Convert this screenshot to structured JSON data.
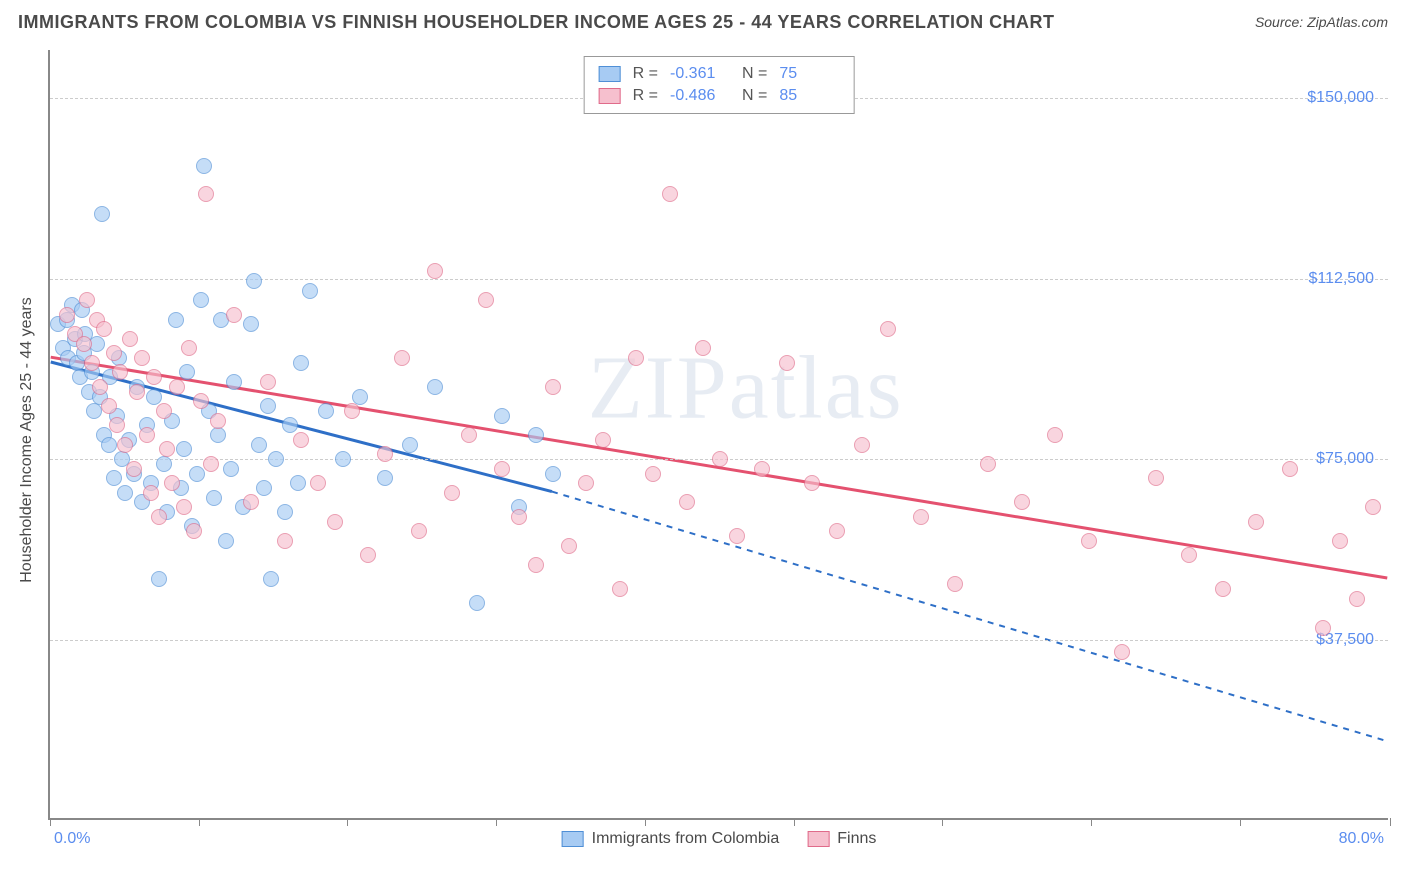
{
  "header": {
    "title": "IMMIGRANTS FROM COLOMBIA VS FINNISH HOUSEHOLDER INCOME AGES 25 - 44 YEARS CORRELATION CHART",
    "source": "Source: ZipAtlas.com"
  },
  "watermark": "ZIPatlas",
  "chart": {
    "type": "scatter-with-regression",
    "background_color": "#ffffff",
    "grid_color": "#cccccc",
    "axis_color": "#888888",
    "value_color": "#5b8def",
    "text_color": "#4a4a4a",
    "xaxis": {
      "min": 0.0,
      "max": 80.0,
      "label_left": "0.0%",
      "label_right": "80.0%",
      "tick_positions_pct": [
        0,
        11.1,
        22.2,
        33.3,
        44.4,
        55.5,
        66.6,
        77.7,
        88.8,
        100
      ]
    },
    "yaxis": {
      "title": "Householder Income Ages 25 - 44 years",
      "min": 0,
      "max": 160000,
      "ticks": [
        {
          "value": 37500,
          "label": "$37,500"
        },
        {
          "value": 75000,
          "label": "$75,000"
        },
        {
          "value": 112500,
          "label": "$112,500"
        },
        {
          "value": 150000,
          "label": "$150,000"
        }
      ]
    },
    "series": [
      {
        "id": "colombia",
        "label": "Immigrants from Colombia",
        "fill_color": "#a7cbf3",
        "stroke_color": "#4f8fd6",
        "line_color": "#2e6fc7",
        "r": "-0.361",
        "n": "75",
        "regression": {
          "x1": 0,
          "y1": 95000,
          "x2_solid": 30,
          "y2_solid": 68000,
          "x2_dash": 80,
          "y2_dash": 16000
        },
        "points": [
          [
            0.5,
            103000
          ],
          [
            0.8,
            98000
          ],
          [
            1.0,
            104000
          ],
          [
            1.1,
            96000
          ],
          [
            1.3,
            107000
          ],
          [
            1.5,
            100000
          ],
          [
            1.6,
            95000
          ],
          [
            1.8,
            92000
          ],
          [
            1.9,
            106000
          ],
          [
            2.0,
            97000
          ],
          [
            2.1,
            101000
          ],
          [
            2.3,
            89000
          ],
          [
            2.5,
            93000
          ],
          [
            2.6,
            85000
          ],
          [
            2.8,
            99000
          ],
          [
            3.0,
            88000
          ],
          [
            3.1,
            126000
          ],
          [
            3.2,
            80000
          ],
          [
            3.5,
            78000
          ],
          [
            3.6,
            92000
          ],
          [
            3.8,
            71000
          ],
          [
            4.0,
            84000
          ],
          [
            4.1,
            96000
          ],
          [
            4.3,
            75000
          ],
          [
            4.5,
            68000
          ],
          [
            4.7,
            79000
          ],
          [
            5.0,
            72000
          ],
          [
            5.2,
            90000
          ],
          [
            5.5,
            66000
          ],
          [
            5.8,
            82000
          ],
          [
            6.0,
            70000
          ],
          [
            6.2,
            88000
          ],
          [
            6.5,
            50000
          ],
          [
            6.8,
            74000
          ],
          [
            7.0,
            64000
          ],
          [
            7.3,
            83000
          ],
          [
            7.5,
            104000
          ],
          [
            7.8,
            69000
          ],
          [
            8.0,
            77000
          ],
          [
            8.2,
            93000
          ],
          [
            8.5,
            61000
          ],
          [
            8.8,
            72000
          ],
          [
            9.0,
            108000
          ],
          [
            9.2,
            136000
          ],
          [
            9.5,
            85000
          ],
          [
            9.8,
            67000
          ],
          [
            10.0,
            80000
          ],
          [
            10.2,
            104000
          ],
          [
            10.5,
            58000
          ],
          [
            10.8,
            73000
          ],
          [
            11.0,
            91000
          ],
          [
            11.5,
            65000
          ],
          [
            12.0,
            103000
          ],
          [
            12.2,
            112000
          ],
          [
            12.5,
            78000
          ],
          [
            12.8,
            69000
          ],
          [
            13.0,
            86000
          ],
          [
            13.2,
            50000
          ],
          [
            13.5,
            75000
          ],
          [
            14.0,
            64000
          ],
          [
            14.3,
            82000
          ],
          [
            14.8,
            70000
          ],
          [
            15.0,
            95000
          ],
          [
            15.5,
            110000
          ],
          [
            16.5,
            85000
          ],
          [
            17.5,
            75000
          ],
          [
            18.5,
            88000
          ],
          [
            20.0,
            71000
          ],
          [
            21.5,
            78000
          ],
          [
            23.0,
            90000
          ],
          [
            25.5,
            45000
          ],
          [
            27.0,
            84000
          ],
          [
            28.0,
            65000
          ],
          [
            29.0,
            80000
          ],
          [
            30.0,
            72000
          ]
        ]
      },
      {
        "id": "finns",
        "label": "Finns",
        "fill_color": "#f6c0ce",
        "stroke_color": "#e06b8a",
        "line_color": "#e4516f",
        "r": "-0.486",
        "n": "85",
        "regression": {
          "x1": 0,
          "y1": 96000,
          "x2_solid": 80,
          "y2_solid": 50000,
          "x2_dash": 80,
          "y2_dash": 50000
        },
        "points": [
          [
            1.0,
            105000
          ],
          [
            1.5,
            101000
          ],
          [
            2.0,
            99000
          ],
          [
            2.2,
            108000
          ],
          [
            2.5,
            95000
          ],
          [
            2.8,
            104000
          ],
          [
            3.0,
            90000
          ],
          [
            3.2,
            102000
          ],
          [
            3.5,
            86000
          ],
          [
            3.8,
            97000
          ],
          [
            4.0,
            82000
          ],
          [
            4.2,
            93000
          ],
          [
            4.5,
            78000
          ],
          [
            4.8,
            100000
          ],
          [
            5.0,
            73000
          ],
          [
            5.2,
            89000
          ],
          [
            5.5,
            96000
          ],
          [
            5.8,
            80000
          ],
          [
            6.0,
            68000
          ],
          [
            6.2,
            92000
          ],
          [
            6.5,
            63000
          ],
          [
            6.8,
            85000
          ],
          [
            7.0,
            77000
          ],
          [
            7.3,
            70000
          ],
          [
            7.6,
            90000
          ],
          [
            8.0,
            65000
          ],
          [
            8.3,
            98000
          ],
          [
            8.6,
            60000
          ],
          [
            9.0,
            87000
          ],
          [
            9.3,
            130000
          ],
          [
            9.6,
            74000
          ],
          [
            10.0,
            83000
          ],
          [
            11.0,
            105000
          ],
          [
            12.0,
            66000
          ],
          [
            13.0,
            91000
          ],
          [
            14.0,
            58000
          ],
          [
            15.0,
            79000
          ],
          [
            16.0,
            70000
          ],
          [
            17.0,
            62000
          ],
          [
            18.0,
            85000
          ],
          [
            19.0,
            55000
          ],
          [
            20.0,
            76000
          ],
          [
            21.0,
            96000
          ],
          [
            22.0,
            60000
          ],
          [
            23.0,
            114000
          ],
          [
            24.0,
            68000
          ],
          [
            25.0,
            80000
          ],
          [
            26.0,
            108000
          ],
          [
            27.0,
            73000
          ],
          [
            28.0,
            63000
          ],
          [
            29.0,
            53000
          ],
          [
            30.0,
            90000
          ],
          [
            31.0,
            57000
          ],
          [
            32.0,
            70000
          ],
          [
            33.0,
            79000
          ],
          [
            34.0,
            48000
          ],
          [
            35.0,
            96000
          ],
          [
            36.0,
            72000
          ],
          [
            37.0,
            130000
          ],
          [
            38.0,
            66000
          ],
          [
            39.0,
            98000
          ],
          [
            40.0,
            75000
          ],
          [
            41.0,
            59000
          ],
          [
            42.5,
            73000
          ],
          [
            44.0,
            95000
          ],
          [
            45.5,
            70000
          ],
          [
            47.0,
            60000
          ],
          [
            48.5,
            78000
          ],
          [
            50.0,
            102000
          ],
          [
            52.0,
            63000
          ],
          [
            54.0,
            49000
          ],
          [
            56.0,
            74000
          ],
          [
            58.0,
            66000
          ],
          [
            60.0,
            80000
          ],
          [
            62.0,
            58000
          ],
          [
            64.0,
            35000
          ],
          [
            66.0,
            71000
          ],
          [
            68.0,
            55000
          ],
          [
            70.0,
            48000
          ],
          [
            72.0,
            62000
          ],
          [
            74.0,
            73000
          ],
          [
            76.0,
            40000
          ],
          [
            77.0,
            58000
          ],
          [
            78.0,
            46000
          ],
          [
            79.0,
            65000
          ]
        ]
      }
    ],
    "legend_bottom": [
      {
        "series": "colombia"
      },
      {
        "series": "finns"
      }
    ]
  }
}
